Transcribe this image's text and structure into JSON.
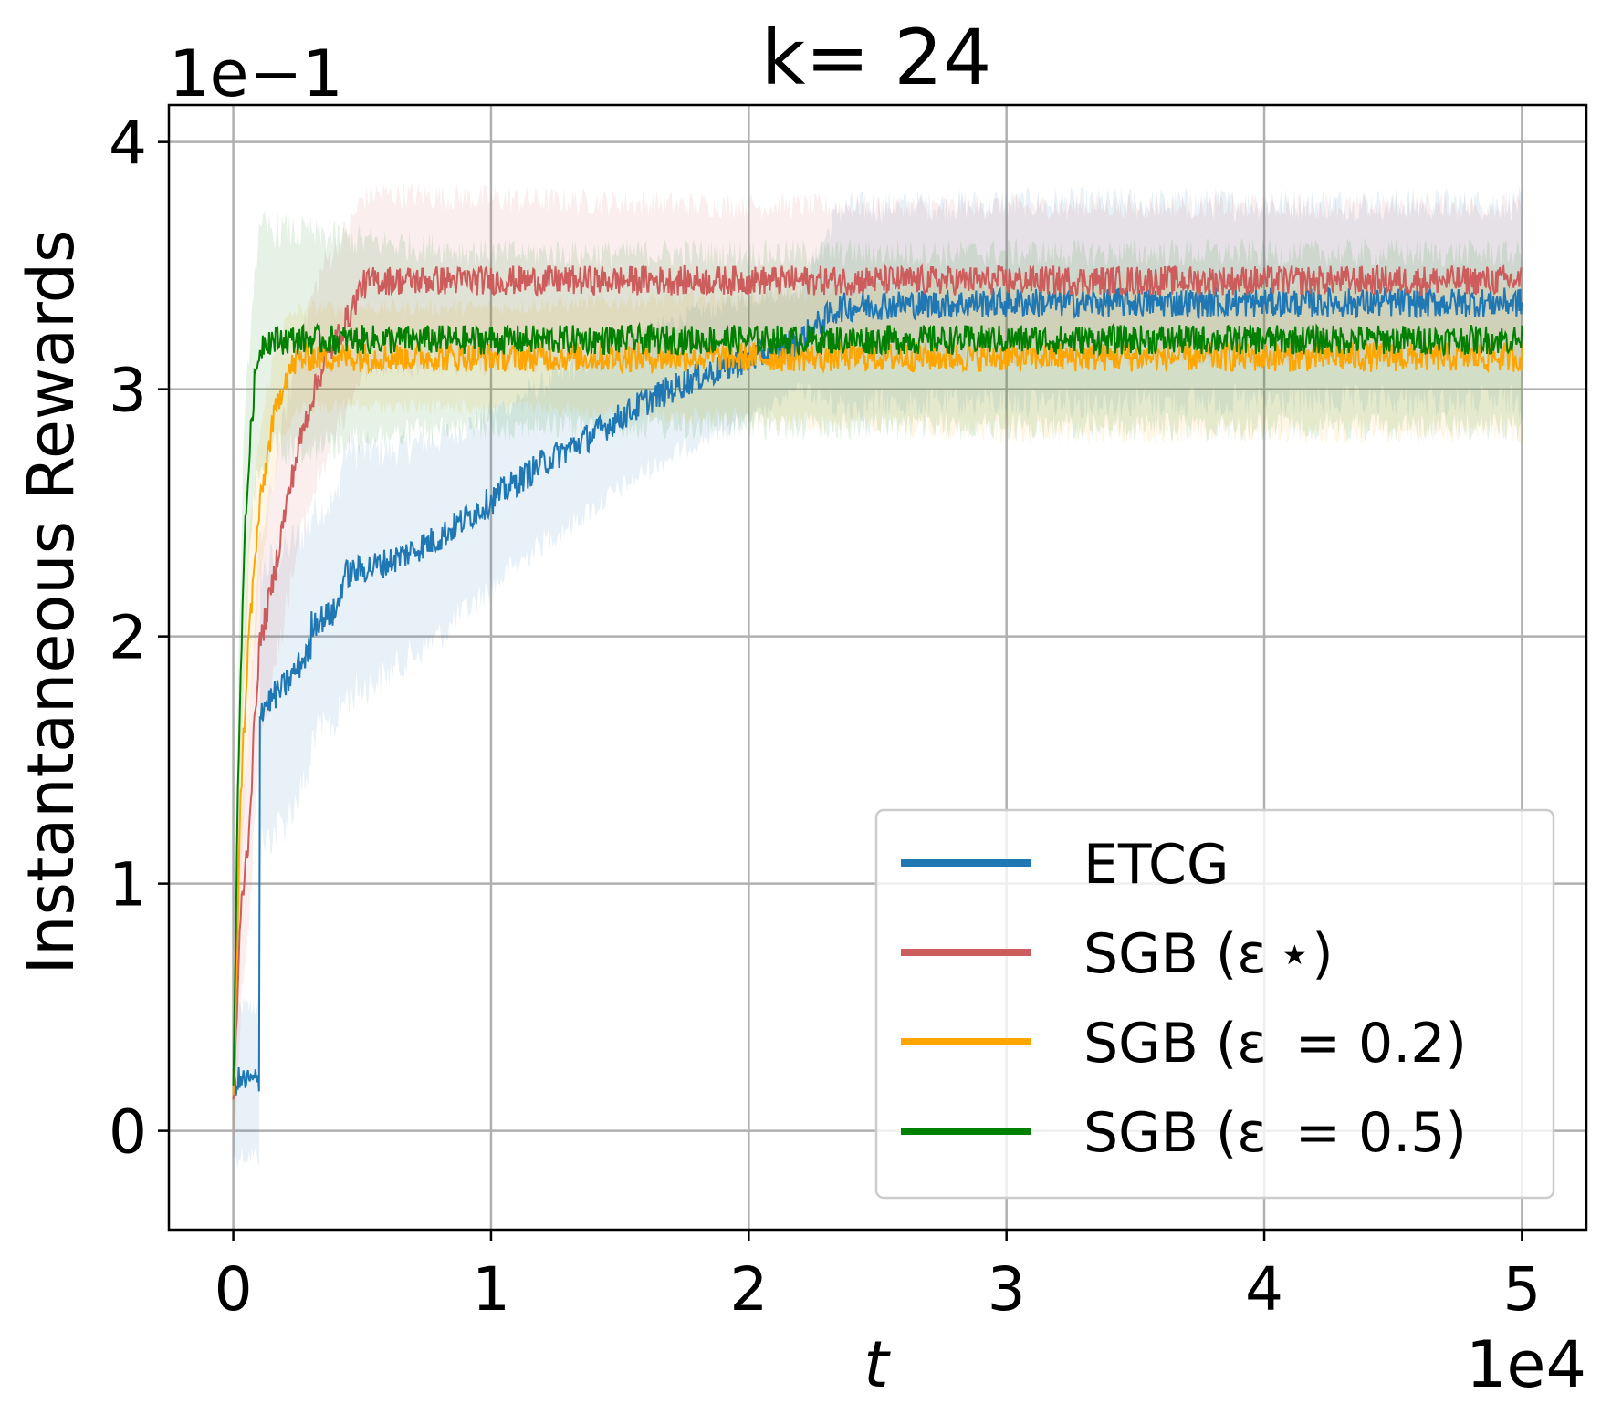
{
  "chart_data": {
    "type": "line",
    "title": "k= 24",
    "xlabel": "t",
    "ylabel": "Instantaneous Rewards",
    "x_offset_label": "1e4",
    "y_offset_label": "1e−1",
    "xlim": [
      -0.25,
      5.25
    ],
    "ylim": [
      -0.4,
      4.15
    ],
    "x_ticks": [
      0,
      1,
      2,
      3,
      4,
      5
    ],
    "x_tick_labels": [
      "0",
      "1",
      "2",
      "3",
      "4",
      "5"
    ],
    "y_ticks": [
      0,
      1,
      2,
      3,
      4
    ],
    "y_tick_labels": [
      "0",
      "1",
      "2",
      "3",
      "4"
    ],
    "grid": true,
    "legend_position": "lower-right",
    "series": [
      {
        "name": "ETCG",
        "color": "#1f77b4",
        "x": [
          0,
          0.05,
          0.1,
          0.1,
          0.2,
          0.3,
          0.3,
          0.4,
          0.43,
          0.6,
          0.8,
          1.0,
          1.2,
          1.4,
          1.6,
          1.8,
          2.0,
          2.2,
          2.35,
          2.5,
          3.0,
          4.0,
          5.0
        ],
        "values": [
          0.2,
          0.2,
          0.2,
          1.7,
          1.8,
          1.95,
          2.05,
          2.1,
          2.25,
          2.3,
          2.4,
          2.55,
          2.7,
          2.82,
          2.95,
          3.05,
          3.12,
          3.2,
          3.33,
          3.34,
          3.35,
          3.35,
          3.35
        ],
        "band_halfwidth": [
          0.3,
          0.3,
          0.3,
          0.55,
          0.55,
          0.5,
          0.45,
          0.45,
          0.5,
          0.45,
          0.4,
          0.35,
          0.32,
          0.3,
          0.28,
          0.26,
          0.25,
          0.2,
          0.4,
          0.4,
          0.4,
          0.4,
          0.4
        ]
      },
      {
        "name": "SGB (ε ⋆)",
        "color": "#cd5c5c",
        "x": [
          0,
          0.03,
          0.06,
          0.08,
          0.1,
          0.15,
          0.2,
          0.25,
          0.3,
          0.35,
          0.4,
          0.45,
          0.5,
          0.55,
          1.0,
          2.0,
          3.0,
          4.0,
          5.0
        ],
        "values": [
          0.1,
          0.9,
          1.2,
          1.6,
          1.95,
          2.2,
          2.5,
          2.75,
          2.95,
          3.1,
          3.2,
          3.3,
          3.42,
          3.44,
          3.44,
          3.44,
          3.44,
          3.44,
          3.44
        ],
        "band_halfwidth": [
          0.2,
          0.4,
          0.4,
          0.4,
          0.4,
          0.4,
          0.4,
          0.4,
          0.4,
          0.4,
          0.38,
          0.36,
          0.35,
          0.35,
          0.33,
          0.3,
          0.3,
          0.3,
          0.3
        ]
      },
      {
        "name": "SGB (ε  = 0.2)",
        "color": "#ffa500",
        "x": [
          0,
          0.03,
          0.06,
          0.1,
          0.15,
          0.2,
          0.25,
          0.3,
          0.5,
          1.0,
          2.0,
          3.0,
          4.0,
          5.0
        ],
        "values": [
          0.1,
          1.4,
          2.0,
          2.5,
          2.85,
          3.05,
          3.12,
          3.13,
          3.13,
          3.13,
          3.13,
          3.13,
          3.13,
          3.13
        ],
        "band_halfwidth": [
          0.2,
          0.35,
          0.35,
          0.3,
          0.25,
          0.22,
          0.2,
          0.2,
          0.2,
          0.2,
          0.25,
          0.3,
          0.3,
          0.3
        ]
      },
      {
        "name": "SGB (ε  = 0.5)",
        "color": "#008000",
        "x": [
          0,
          0.02,
          0.04,
          0.06,
          0.08,
          0.1,
          0.12,
          0.5,
          1.0,
          2.0,
          3.0,
          4.0,
          5.0
        ],
        "values": [
          0.15,
          1.5,
          2.3,
          2.7,
          3.0,
          3.15,
          3.2,
          3.2,
          3.2,
          3.2,
          3.2,
          3.2,
          3.2
        ],
        "band_halfwidth": [
          0.2,
          0.4,
          0.45,
          0.45,
          0.45,
          0.45,
          0.45,
          0.4,
          0.35,
          0.35,
          0.35,
          0.35,
          0.35
        ]
      }
    ]
  }
}
